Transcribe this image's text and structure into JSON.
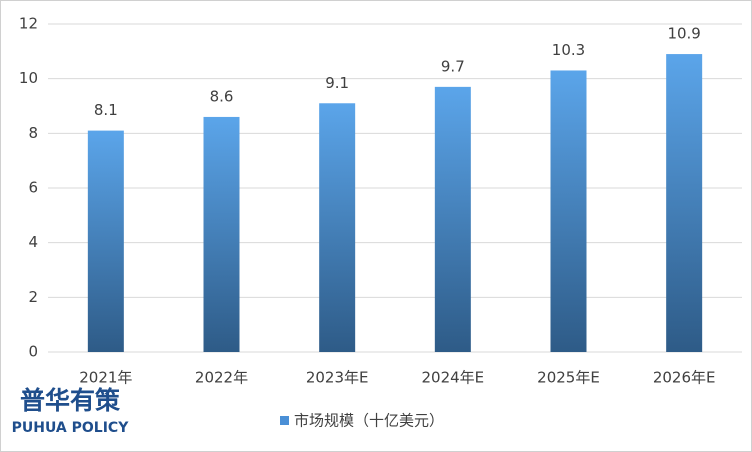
{
  "chart_data": {
    "type": "bar",
    "categories": [
      "2021年",
      "2022年",
      "2023年E",
      "2024年E",
      "2025年E",
      "2026年E"
    ],
    "series": [
      {
        "name": "市场规模（十亿美元）",
        "color": "#4a8fd6",
        "values": [
          8.1,
          8.6,
          9.1,
          9.7,
          10.3,
          10.9
        ]
      }
    ],
    "ylim": [
      0,
      12
    ],
    "yticks": [
      0,
      2,
      4,
      6,
      8,
      10,
      12
    ],
    "grid": true,
    "legend": "bottom",
    "annotations": [
      "普华有策",
      "PUHUA POLICY"
    ]
  }
}
